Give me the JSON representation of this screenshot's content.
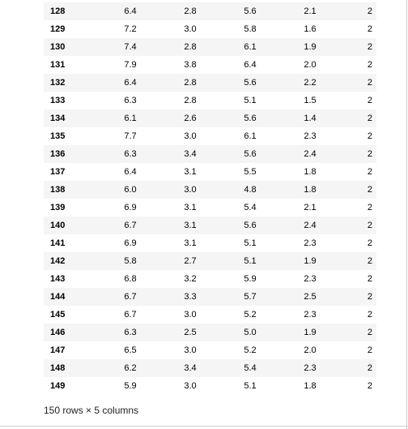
{
  "table": {
    "rows": [
      {
        "index": "128",
        "values": [
          "6.4",
          "2.8",
          "5.6",
          "2.1",
          "2"
        ]
      },
      {
        "index": "129",
        "values": [
          "7.2",
          "3.0",
          "5.8",
          "1.6",
          "2"
        ]
      },
      {
        "index": "130",
        "values": [
          "7.4",
          "2.8",
          "6.1",
          "1.9",
          "2"
        ]
      },
      {
        "index": "131",
        "values": [
          "7.9",
          "3.8",
          "6.4",
          "2.0",
          "2"
        ]
      },
      {
        "index": "132",
        "values": [
          "6.4",
          "2.8",
          "5.6",
          "2.2",
          "2"
        ]
      },
      {
        "index": "133",
        "values": [
          "6.3",
          "2.8",
          "5.1",
          "1.5",
          "2"
        ]
      },
      {
        "index": "134",
        "values": [
          "6.1",
          "2.6",
          "5.6",
          "1.4",
          "2"
        ]
      },
      {
        "index": "135",
        "values": [
          "7.7",
          "3.0",
          "6.1",
          "2.3",
          "2"
        ]
      },
      {
        "index": "136",
        "values": [
          "6.3",
          "3.4",
          "5.6",
          "2.4",
          "2"
        ]
      },
      {
        "index": "137",
        "values": [
          "6.4",
          "3.1",
          "5.5",
          "1.8",
          "2"
        ]
      },
      {
        "index": "138",
        "values": [
          "6.0",
          "3.0",
          "4.8",
          "1.8",
          "2"
        ]
      },
      {
        "index": "139",
        "values": [
          "6.9",
          "3.1",
          "5.4",
          "2.1",
          "2"
        ]
      },
      {
        "index": "140",
        "values": [
          "6.7",
          "3.1",
          "5.6",
          "2.4",
          "2"
        ]
      },
      {
        "index": "141",
        "values": [
          "6.9",
          "3.1",
          "5.1",
          "2.3",
          "2"
        ]
      },
      {
        "index": "142",
        "values": [
          "5.8",
          "2.7",
          "5.1",
          "1.9",
          "2"
        ]
      },
      {
        "index": "143",
        "values": [
          "6.8",
          "3.2",
          "5.9",
          "2.3",
          "2"
        ]
      },
      {
        "index": "144",
        "values": [
          "6.7",
          "3.3",
          "5.7",
          "2.5",
          "2"
        ]
      },
      {
        "index": "145",
        "values": [
          "6.7",
          "3.0",
          "5.2",
          "2.3",
          "2"
        ]
      },
      {
        "index": "146",
        "values": [
          "6.3",
          "2.5",
          "5.0",
          "1.9",
          "2"
        ]
      },
      {
        "index": "147",
        "values": [
          "6.5",
          "3.0",
          "5.2",
          "2.0",
          "2"
        ]
      },
      {
        "index": "148",
        "values": [
          "6.2",
          "3.4",
          "5.4",
          "2.3",
          "2"
        ]
      },
      {
        "index": "149",
        "values": [
          "5.9",
          "3.0",
          "5.1",
          "1.8",
          "2"
        ]
      }
    ]
  },
  "footer": {
    "shape_text": "150 rows × 5 columns"
  }
}
